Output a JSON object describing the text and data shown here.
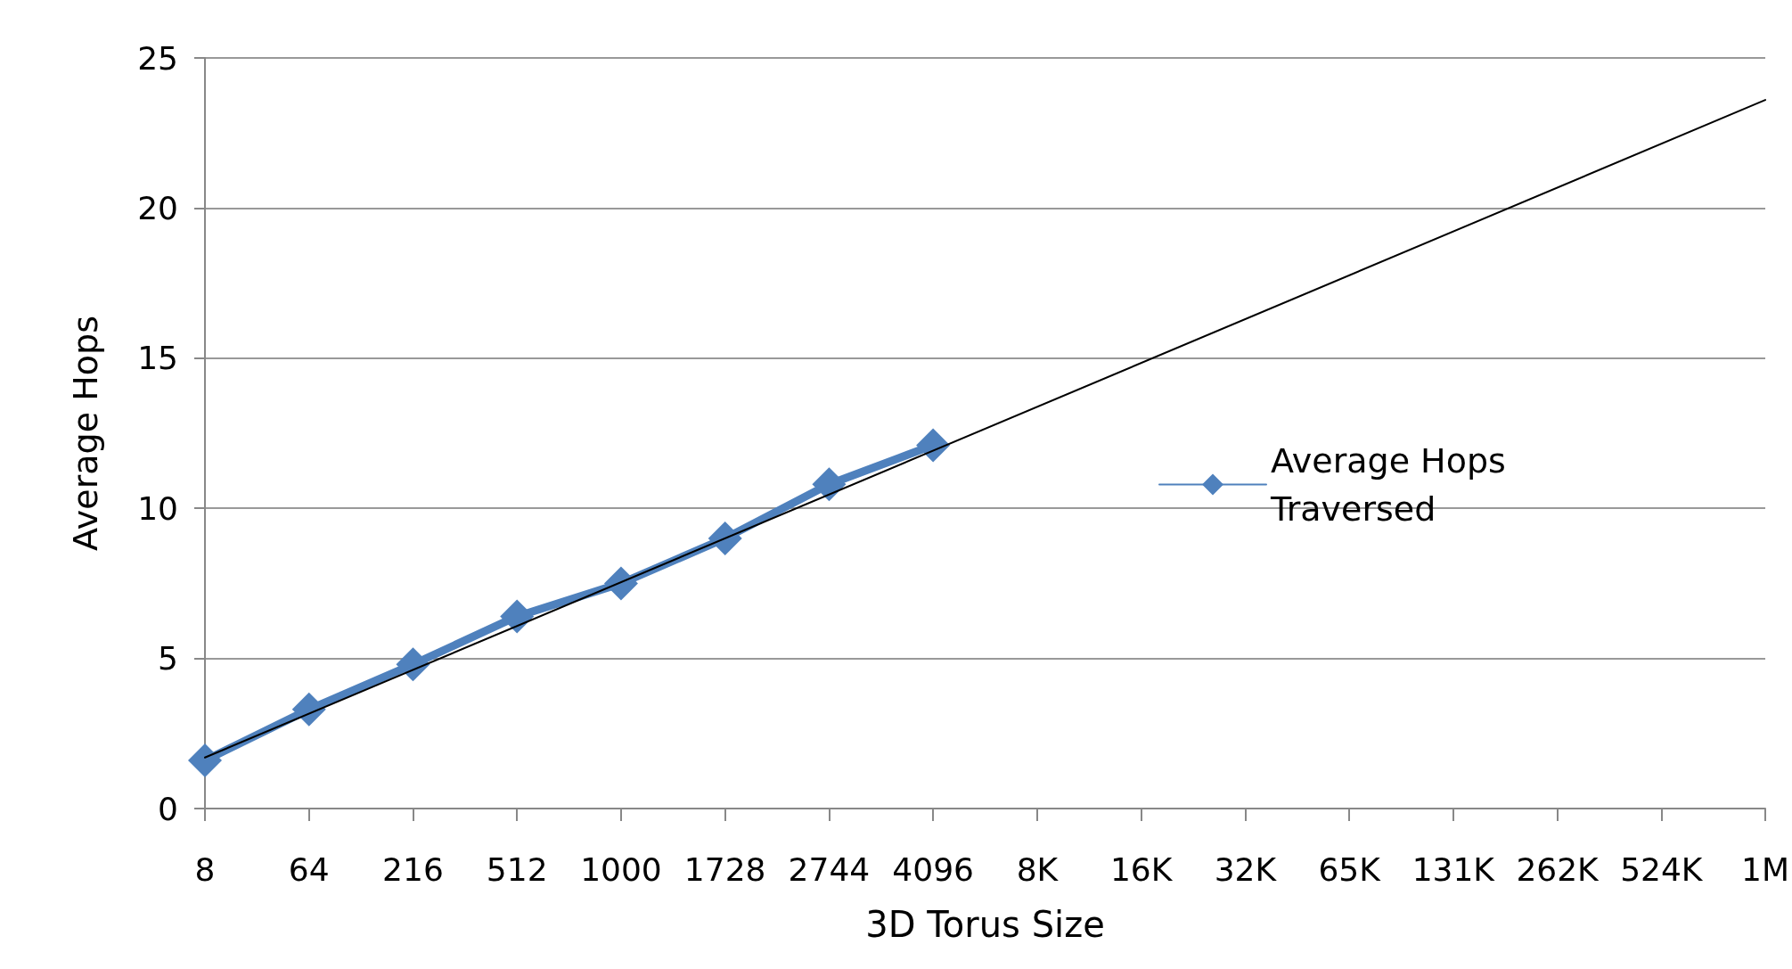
{
  "chart_data": {
    "type": "line",
    "xlabel": "3D Torus Size",
    "ylabel": "Average Hops",
    "categories": [
      "8",
      "64",
      "216",
      "512",
      "1000",
      "1728",
      "2744",
      "4096",
      "8K",
      "16K",
      "32K",
      "65K",
      "131K",
      "262K",
      "524K",
      "1M"
    ],
    "series": [
      {
        "name": "Average Hops Traversed",
        "color": "#4f81bd",
        "marker": "diamond",
        "values": [
          1.6,
          3.3,
          4.8,
          6.4,
          7.5,
          9.0,
          10.8,
          12.1,
          null,
          null,
          null,
          null,
          null,
          null,
          null,
          null
        ]
      },
      {
        "type": "line",
        "color": "#000000",
        "marker": "none",
        "x": [
          "8",
          "1M"
        ],
        "values": [
          1.7,
          23.6
        ]
      }
    ],
    "ylim": [
      0,
      25
    ],
    "yticks": [
      0,
      5,
      10,
      15,
      20,
      25
    ],
    "grid": "y",
    "legend": "right"
  }
}
